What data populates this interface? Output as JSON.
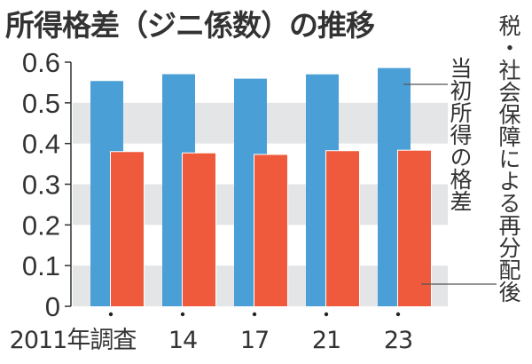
{
  "chart_data": {
    "type": "bar",
    "title": "所得格差（ジニ係数）の推移",
    "categories": [
      "2011年調査",
      "14",
      "17",
      "21",
      "23"
    ],
    "series": [
      {
        "name": "当初所得の格差",
        "values": [
          0.5536,
          0.5704,
          0.5594,
          0.57,
          0.5855
        ],
        "color": "#4a9fd6"
      },
      {
        "name": "税・社会保障による再分配後",
        "values": [
          0.3791,
          0.3759,
          0.3721,
          0.3813,
          0.3825
        ],
        "color": "#ef5a3c"
      }
    ],
    "yticks": [
      "0",
      "0.1",
      "0.2",
      "0.3",
      "0.4",
      "0.5",
      "0.6"
    ],
    "ylim": [
      0,
      0.6
    ],
    "xlabel": "",
    "ylabel": "",
    "grid": "alternating bands",
    "legend": "right, vertical labels with leader lines"
  }
}
